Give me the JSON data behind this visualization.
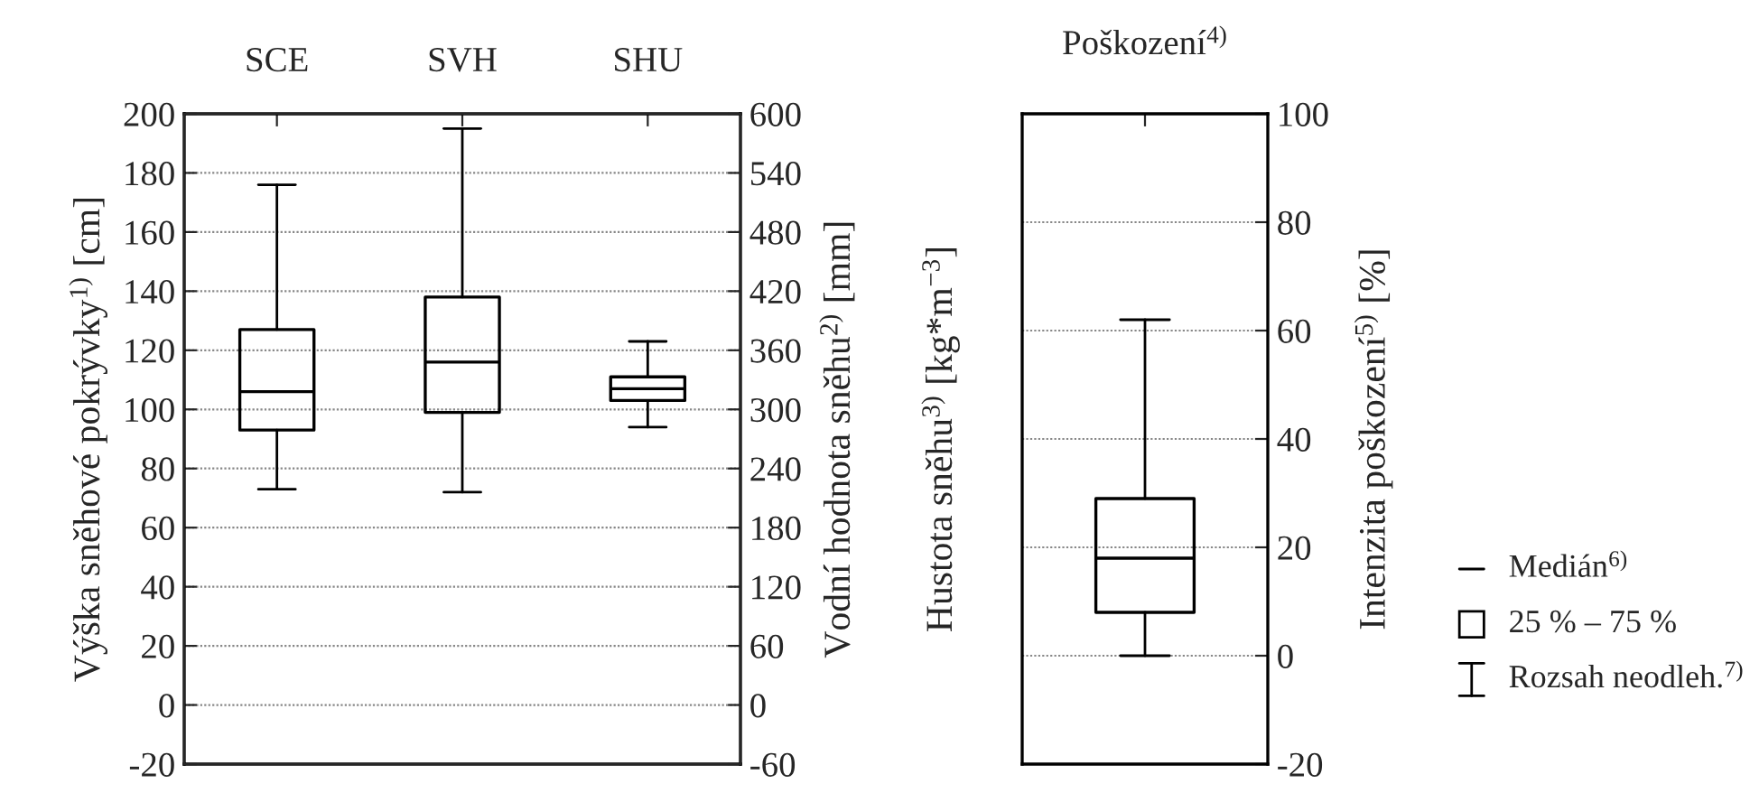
{
  "chart_data": [
    {
      "type": "box",
      "categories": [
        "SCE",
        "SVH",
        "SHU"
      ],
      "boxes": [
        {
          "low": 73,
          "q1": 93,
          "median": 106,
          "q3": 127,
          "high": 176
        },
        {
          "low": 72,
          "q1": 99,
          "median": 116,
          "q3": 138,
          "high": 195
        },
        {
          "low": 94,
          "q1": 103,
          "median": 107,
          "q3": 111,
          "high": 123
        }
      ],
      "ylim": [
        -20,
        200
      ],
      "yticks": [
        -20,
        0,
        20,
        40,
        60,
        80,
        100,
        120,
        140,
        160,
        180,
        200
      ],
      "y2lim": [
        -60,
        600
      ],
      "y2ticks": [
        -60,
        0,
        60,
        120,
        180,
        240,
        300,
        360,
        420,
        480,
        540,
        600
      ],
      "ylabel": "Výška sněhové pokrývky$^{1)}$ [cm]",
      "y2label": "Vodní hodnota sněhu$^{2)}$ [mm]",
      "y3label": "Hustota sněhu$^{3)}$ [kg*m$^{−3}$]",
      "grid": "y"
    },
    {
      "type": "box",
      "title": "Poškození$^{4)}$",
      "categories": [
        null
      ],
      "boxes": [
        {
          "low": 0,
          "q1": 8,
          "median": 18,
          "q3": 29,
          "high": 62
        }
      ],
      "ylim": [
        -20,
        100
      ],
      "yticks": [
        -20,
        0,
        20,
        40,
        60,
        80,
        100
      ],
      "ylabel": "Intenzita poškození$^{5)}$ [%]",
      "grid": "y",
      "annotations": [
        "Medián$^{6)}$",
        "25 % – 75 %",
        "Rozsah neodleh.$^{7)}$"
      ]
    }
  ]
}
